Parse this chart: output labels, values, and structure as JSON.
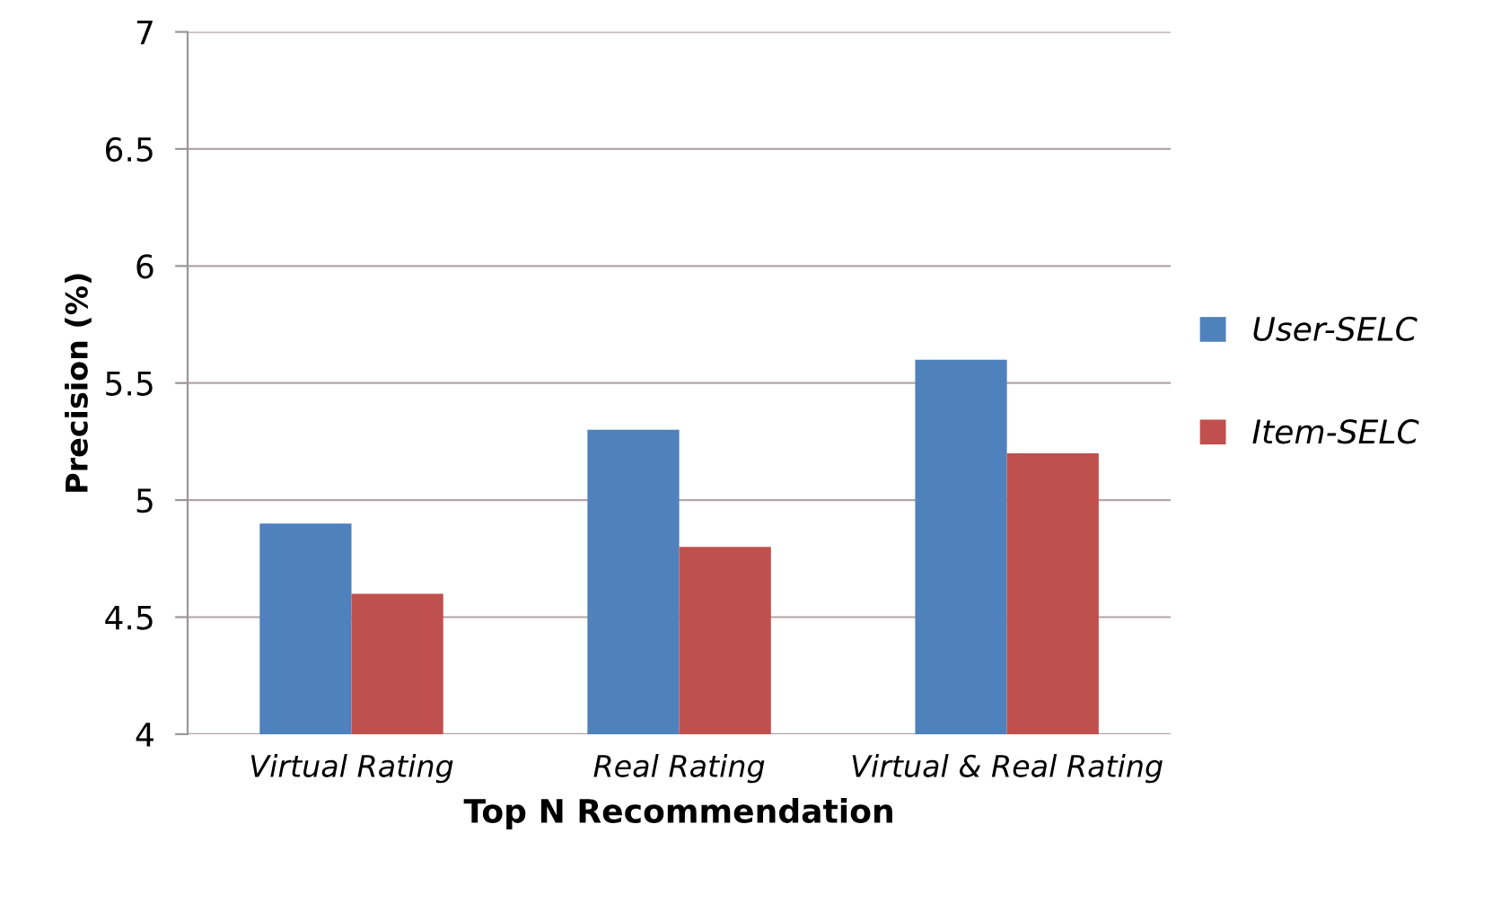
{
  "chart_data": {
    "type": "bar",
    "xlabel": "Top N Recommendation",
    "ylabel": "Precision (%)",
    "categories": [
      "Virtual Rating",
      "Real Rating",
      "Virtual & Real Rating"
    ],
    "series": [
      {
        "name": "User-SELC",
        "color": "#4f81bd",
        "values": [
          4.9,
          5.3,
          5.6
        ]
      },
      {
        "name": "Item-SELC",
        "color": "#c0504d",
        "values": [
          4.6,
          4.8,
          5.2
        ]
      }
    ],
    "ylim": [
      4,
      7
    ],
    "yticks": [
      4,
      4.5,
      5,
      5.5,
      6,
      6.5,
      7
    ],
    "grid": "y",
    "legend": "right"
  }
}
